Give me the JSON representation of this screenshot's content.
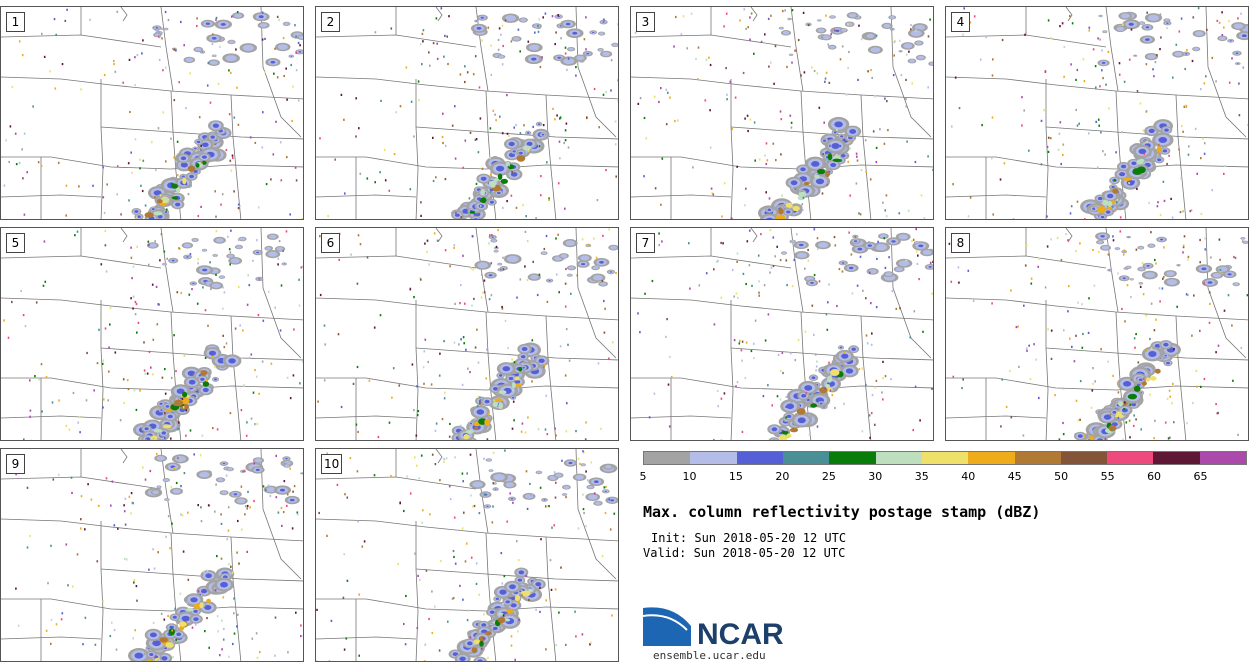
{
  "panels": [
    "1",
    "2",
    "3",
    "4",
    "5",
    "6",
    "7",
    "8",
    "9",
    "10"
  ],
  "colorbar": {
    "ticks": [
      "5",
      "10",
      "15",
      "20",
      "25",
      "30",
      "35",
      "40",
      "45",
      "50",
      "55",
      "60",
      "65"
    ],
    "colors": [
      "#a3a3a3",
      "#b4bde8",
      "#5660d6",
      "#4a8e96",
      "#0a7c0a",
      "#bedfbe",
      "#efe06a",
      "#efac1a",
      "#b07a35",
      "#845438",
      "#ef4a7e",
      "#5e1836",
      "#ab4aab"
    ]
  },
  "title": "Max. column reflectivity postage stamp (dBZ)",
  "init": "Init: Sun 2018-05-20 12 UTC",
  "valid": "Valid: Sun 2018-05-20 12 UTC",
  "logo": {
    "text": "NCAR",
    "url": "ensemble.ucar.edu"
  },
  "colors": {
    "map_lines": "#777777",
    "logo_blue": "#1d66b4",
    "logo_dark": "#1d3f6b"
  }
}
